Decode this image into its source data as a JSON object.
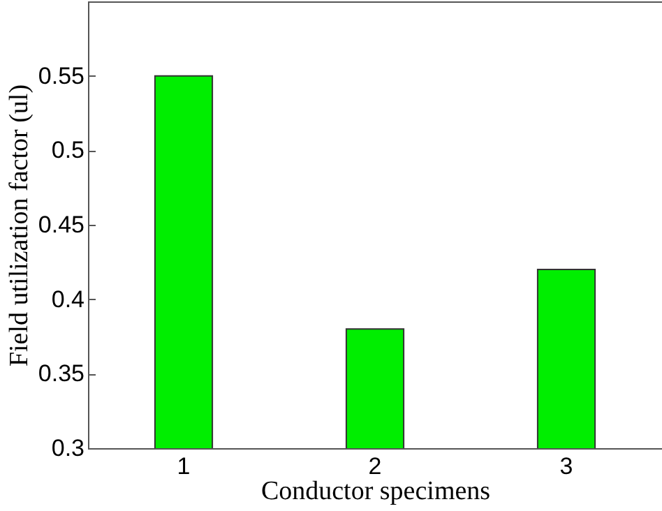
{
  "chart_data": {
    "type": "bar",
    "xlabel": "Conductor specimens",
    "ylabel": "Field utilization factor (ul)",
    "categories": [
      "1",
      "2",
      "3"
    ],
    "values": [
      0.55,
      0.38,
      0.42
    ],
    "color": "#00ee00",
    "ylim": [
      0.3,
      0.6
    ],
    "yticks": [
      0.3,
      0.35,
      0.4,
      0.45,
      0.5,
      0.55
    ],
    "grid": false
  }
}
